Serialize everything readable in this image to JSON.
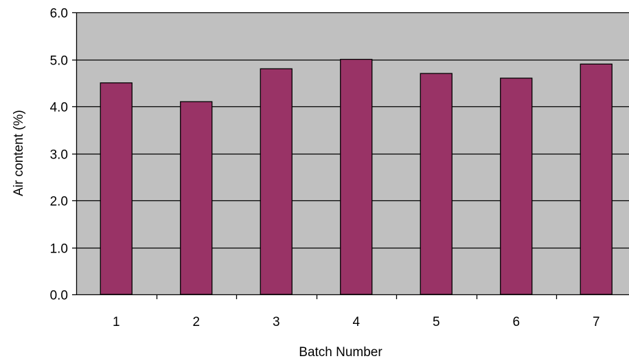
{
  "chart_data": {
    "type": "bar",
    "title": "",
    "xlabel": "Batch Number",
    "ylabel": "Air content (%)",
    "categories": [
      "1",
      "2",
      "3",
      "4",
      "5",
      "6",
      "7"
    ],
    "values": [
      4.5,
      4.1,
      4.8,
      5.0,
      4.7,
      4.6,
      4.9
    ],
    "ylim": [
      0,
      6
    ],
    "yticks": [
      "0.0",
      "1.0",
      "2.0",
      "3.0",
      "4.0",
      "5.0",
      "6.0"
    ],
    "grid": true,
    "legend": "none",
    "colors": {
      "bar_fill": "#993366",
      "bar_stroke": "#000000",
      "plot_background": "#c0c0c0",
      "gridline": "#000000"
    }
  }
}
